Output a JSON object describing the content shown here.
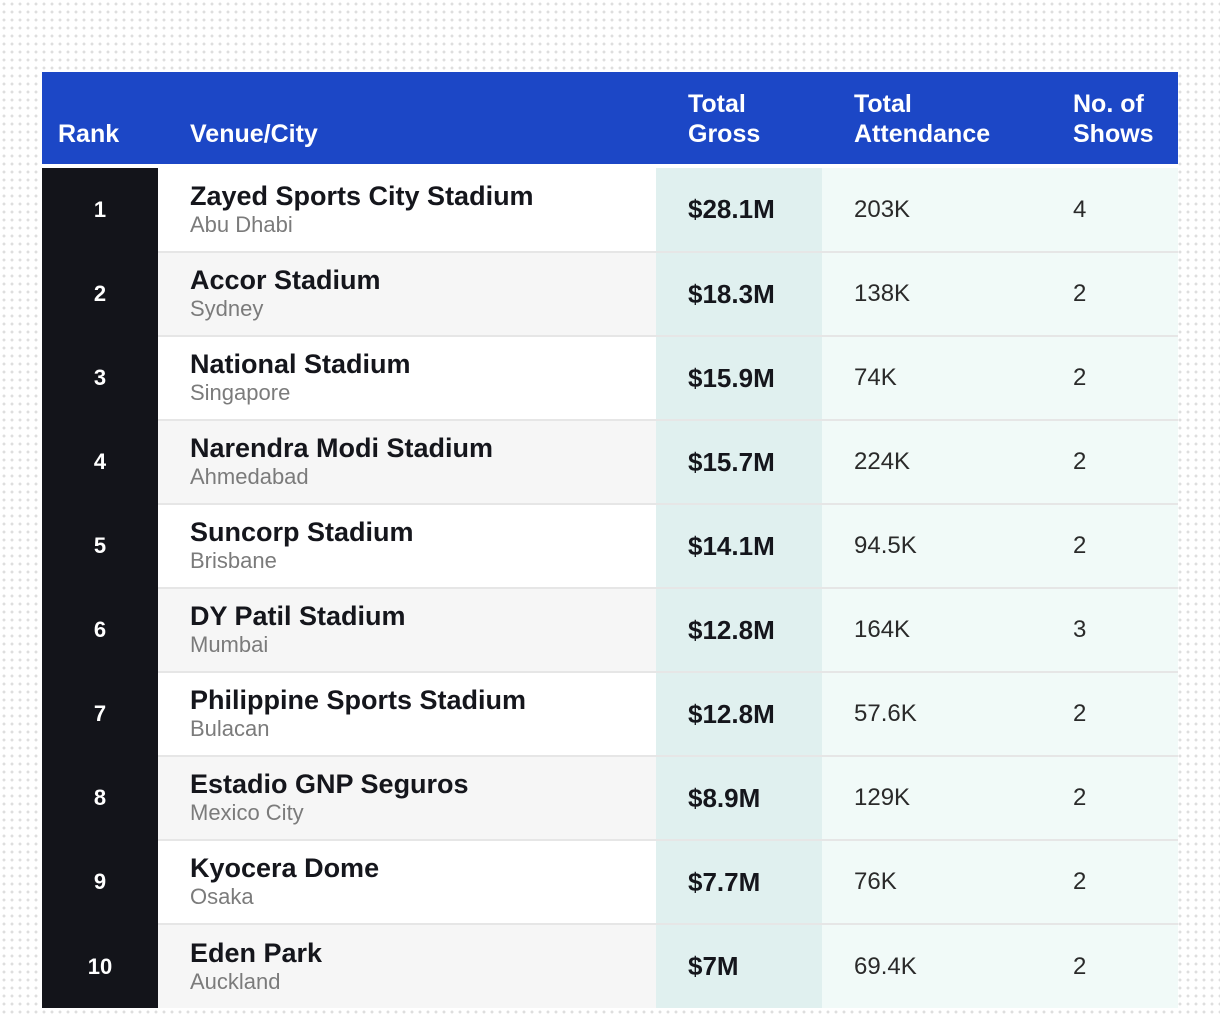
{
  "table": {
    "headers": {
      "rank": "Rank",
      "venue": "Venue/City",
      "gross_1": "Total",
      "gross_2": "Gross",
      "attendance_1": "Total",
      "attendance_2": "Attendance",
      "shows_1": "No. of",
      "shows_2": "Shows"
    },
    "rows": [
      {
        "rank": "1",
        "venue": "Zayed Sports City Stadium",
        "city": "Abu Dhabi",
        "gross": "$28.1M",
        "attendance": "203K",
        "shows": "4"
      },
      {
        "rank": "2",
        "venue": "Accor Stadium",
        "city": "Sydney",
        "gross": "$18.3M",
        "attendance": "138K",
        "shows": "2"
      },
      {
        "rank": "3",
        "venue": "National Stadium",
        "city": "Singapore",
        "gross": "$15.9M",
        "attendance": "74K",
        "shows": "2"
      },
      {
        "rank": "4",
        "venue": "Narendra Modi Stadium",
        "city": "Ahmedabad",
        "gross": "$15.7M",
        "attendance": "224K",
        "shows": "2"
      },
      {
        "rank": "5",
        "venue": "Suncorp Stadium",
        "city": "Brisbane",
        "gross": "$14.1M",
        "attendance": "94.5K",
        "shows": "2"
      },
      {
        "rank": "6",
        "venue": "DY Patil Stadium",
        "city": "Mumbai",
        "gross": "$12.8M",
        "attendance": "164K",
        "shows": "3"
      },
      {
        "rank": "7",
        "venue": "Philippine Sports Stadium",
        "city": "Bulacan",
        "gross": "$12.8M",
        "attendance": "57.6K",
        "shows": "2"
      },
      {
        "rank": "8",
        "venue": "Estadio GNP Seguros",
        "city": "Mexico City",
        "gross": "$8.9M",
        "attendance": "129K",
        "shows": "2"
      },
      {
        "rank": "9",
        "venue": "Kyocera Dome",
        "city": "Osaka",
        "gross": "$7.7M",
        "attendance": "76K",
        "shows": "2"
      },
      {
        "rank": "10",
        "venue": "Eden Park",
        "city": "Auckland",
        "gross": "$7M",
        "attendance": "69.4K",
        "shows": "2"
      }
    ]
  },
  "colors": {
    "header_bg": "#1c47c6",
    "rank_bg": "#13141a",
    "gross_col_bg": "#e0f0ef",
    "light_col_bg": "#f1faf8"
  },
  "chart_data": {
    "type": "table",
    "columns": [
      "Rank",
      "Venue/City",
      "Total Gross",
      "Total Attendance",
      "No. of Shows"
    ],
    "rows": [
      [
        "1",
        "Zayed Sports City Stadium / Abu Dhabi",
        "$28.1M",
        "203K",
        "4"
      ],
      [
        "2",
        "Accor Stadium / Sydney",
        "$18.3M",
        "138K",
        "2"
      ],
      [
        "3",
        "National Stadium / Singapore",
        "$15.9M",
        "74K",
        "2"
      ],
      [
        "4",
        "Narendra Modi Stadium / Ahmedabad",
        "$15.7M",
        "224K",
        "2"
      ],
      [
        "5",
        "Suncorp Stadium / Brisbane",
        "$14.1M",
        "94.5K",
        "2"
      ],
      [
        "6",
        "DY Patil Stadium / Mumbai",
        "$12.8M",
        "164K",
        "3"
      ],
      [
        "7",
        "Philippine Sports Stadium / Bulacan",
        "$12.8M",
        "57.6K",
        "2"
      ],
      [
        "8",
        "Estadio GNP Seguros / Mexico City",
        "$8.9M",
        "129K",
        "2"
      ],
      [
        "9",
        "Kyocera Dome / Osaka",
        "$7.7M",
        "76K",
        "2"
      ],
      [
        "10",
        "Eden Park / Auckland",
        "$7M",
        "69.4K",
        "2"
      ]
    ]
  }
}
